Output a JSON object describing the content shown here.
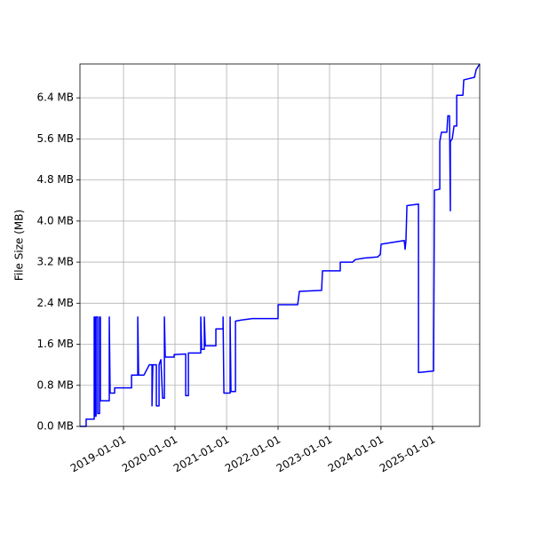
{
  "chart_data": {
    "type": "line",
    "ylabel": "File Size (MB)",
    "color": "#0000ff",
    "grid": true,
    "xlim": [
      "2018-02-26",
      "2025-12-01"
    ],
    "xticks": [
      "2019-01-01",
      "2020-01-01",
      "2021-01-01",
      "2022-01-01",
      "2023-01-01",
      "2024-01-01",
      "2025-01-01"
    ],
    "ylim": [
      0,
      7.06
    ],
    "yticks": [
      {
        "value": 0,
        "label": "0.0 MB"
      },
      {
        "value": 0.8,
        "label": "0.8 MB"
      },
      {
        "value": 1.6,
        "label": "1.6 MB"
      },
      {
        "value": 2.4,
        "label": "2.4 MB"
      },
      {
        "value": 3.2,
        "label": "3.2 MB"
      },
      {
        "value": 4.0,
        "label": "4.0 MB"
      },
      {
        "value": 4.8,
        "label": "4.8 MB"
      },
      {
        "value": 5.6,
        "label": "5.6 MB"
      },
      {
        "value": 6.4,
        "label": "6.4 MB"
      }
    ],
    "x": [
      "2018-02-26",
      "2018-04-11",
      "2018-04-11",
      "2018-06-07",
      "2018-06-07",
      "2018-06-13",
      "2018-06-13",
      "2018-06-20",
      "2018-06-20",
      "2018-07-02",
      "2018-07-02",
      "2018-07-15",
      "2018-07-15",
      "2018-07-21",
      "2018-07-21",
      "2018-09-22",
      "2018-09-22",
      "2018-09-28",
      "2018-10-30",
      "2018-10-30",
      "2019-02-27",
      "2019-02-27",
      "2019-04-12",
      "2019-04-12",
      "2019-04-18",
      "2019-05-26",
      "2019-06-14",
      "2019-07-03",
      "2019-07-22",
      "2019-07-22",
      "2019-07-28",
      "2019-08-22",
      "2019-08-22",
      "2019-09-10",
      "2019-09-10",
      "2019-09-23",
      "2019-10-05",
      "2019-10-18",
      "2019-10-18",
      "2019-10-24",
      "2019-12-26",
      "2019-12-26",
      "2020-03-17",
      "2020-03-17",
      "2020-04-05",
      "2020-04-05",
      "2020-07-02",
      "2020-07-02",
      "2020-07-08",
      "2020-07-27",
      "2020-07-27",
      "2020-08-03",
      "2020-10-17",
      "2020-10-17",
      "2020-12-07",
      "2020-12-07",
      "2020-12-13",
      "2021-01-26",
      "2021-01-26",
      "2021-02-01",
      "2021-03-05",
      "2021-03-05",
      "2021-04-12",
      "2021-07-02",
      "2022-01-01",
      "2022-01-01",
      "2022-05-20",
      "2022-06-01",
      "2022-11-06",
      "2022-11-12",
      "2023-03-18",
      "2023-03-18",
      "2023-06-14",
      "2023-07-03",
      "2023-09-04",
      "2023-12-08",
      "2023-12-27",
      "2024-01-02",
      "2024-06-14",
      "2024-06-20",
      "2024-06-26",
      "2024-07-03",
      "2024-09-23",
      "2024-09-23",
      "2025-01-08",
      "2025-01-14",
      "2025-02-21",
      "2025-02-21",
      "2025-03-05",
      "2025-04-12",
      "2025-04-19",
      "2025-05-01",
      "2025-05-07",
      "2025-05-07",
      "2025-05-20",
      "2025-06-02",
      "2025-06-21",
      "2025-06-21",
      "2025-08-04",
      "2025-08-10",
      "2025-10-25",
      "2025-11-06",
      "2025-12-01"
    ],
    "values": [
      0,
      0,
      0.14,
      0.14,
      2.13,
      2.13,
      0.2,
      0.2,
      2.13,
      2.13,
      0.25,
      0.25,
      2.13,
      2.13,
      0.5,
      0.5,
      2.13,
      0.65,
      0.65,
      0.75,
      0.75,
      1.0,
      1.0,
      2.13,
      1.0,
      1.0,
      1.1,
      1.2,
      1.2,
      0.4,
      1.2,
      1.2,
      0.4,
      0.4,
      1.2,
      1.3,
      0.55,
      0.55,
      2.13,
      1.35,
      1.35,
      1.4,
      1.41,
      0.6,
      0.6,
      1.43,
      1.43,
      2.13,
      1.5,
      1.5,
      2.13,
      1.57,
      1.57,
      1.9,
      1.9,
      2.13,
      0.65,
      0.65,
      2.13,
      0.68,
      0.68,
      2.05,
      2.07,
      2.1,
      2.1,
      2.37,
      2.37,
      2.63,
      2.65,
      3.03,
      3.03,
      3.2,
      3.2,
      3.25,
      3.28,
      3.3,
      3.35,
      3.55,
      3.62,
      3.45,
      3.62,
      4.3,
      4.33,
      1.05,
      1.08,
      4.6,
      4.62,
      5.55,
      5.73,
      5.73,
      6.05,
      6.05,
      4.2,
      5.55,
      5.6,
      5.85,
      5.85,
      6.45,
      6.45,
      6.75,
      6.8,
      6.95,
      7.06
    ]
  }
}
